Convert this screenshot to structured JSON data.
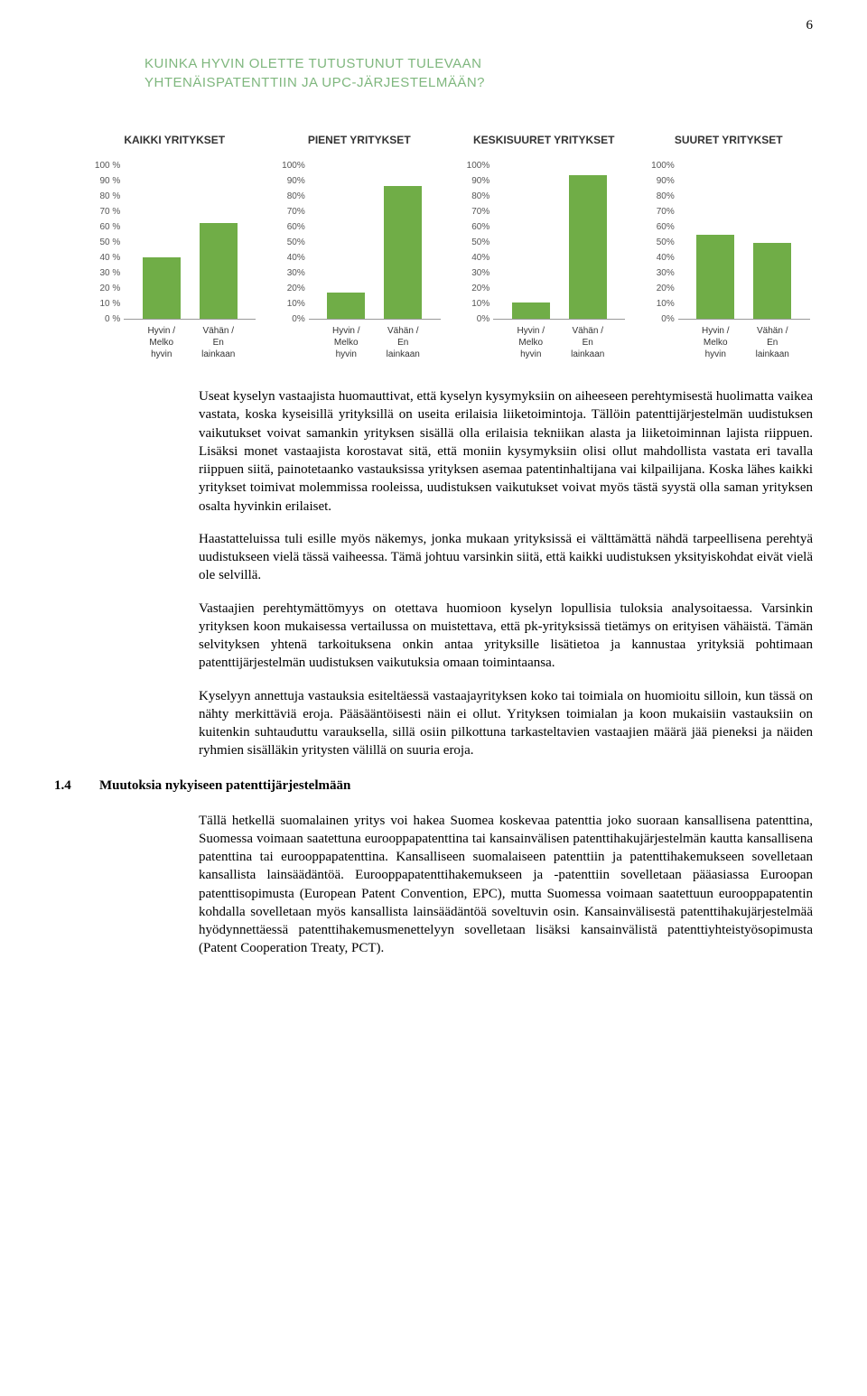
{
  "page_number": "6",
  "chart_heading": {
    "line1": "KUINKA HYVIN OLETTE TUTUSTUNUT TULEVAAN",
    "line2": "YHTENÄISPATENTTIIN JA UPC-JÄRJESTELMÄÄN?",
    "color": "#7fb77e"
  },
  "charts": {
    "ylim": [
      0,
      100
    ],
    "ytick_step": 10,
    "bar_color": "#70ad47",
    "background_color": "#ffffff",
    "panels": [
      {
        "title": "KAIKKI YRITYKSET",
        "y_suffix": " %",
        "categories": [
          "Hyvin / Melko hyvin",
          "Vähän / En lainkaan"
        ],
        "values": [
          38,
          59
        ]
      },
      {
        "title": "PIENET YRITYKSET",
        "y_suffix": "%",
        "categories": [
          "Hyvin / Melko hyvin",
          "Vähän / En lainkaan"
        ],
        "values": [
          16,
          82
        ]
      },
      {
        "title": "KESKISUURET YRITYKSET",
        "y_suffix": "%",
        "categories": [
          "Hyvin / Melko hyvin",
          "Vähän / En lainkaan"
        ],
        "values": [
          10,
          89
        ]
      },
      {
        "title": "SUURET YRITYKSET",
        "y_suffix": "%",
        "categories": [
          "Hyvin / Melko hyvin",
          "Vähän / En lainkaan"
        ],
        "values": [
          52,
          47
        ]
      }
    ]
  },
  "paragraphs": [
    "Useat kyselyn vastaajista huomauttivat, että kyselyn kysymyksiin on aiheeseen perehtymisestä huolimatta vaikea vastata, koska kyseisillä yrityksillä on useita erilaisia liiketoimintoja. Tällöin patenttijärjestelmän uudistuksen vaikutukset voivat samankin yrityksen sisällä olla erilaisia tekniikan alasta ja liiketoiminnan lajista riippuen. Lisäksi monet vastaajista korostavat sitä, että moniin kysymyksiin olisi ollut mahdollista vastata eri tavalla riippuen siitä, painotetaanko vastauksissa yrityksen asemaa patentinhaltijana vai kilpailijana. Koska lähes kaikki yritykset toimivat molemmissa rooleissa, uudistuksen vaikutukset voivat myös tästä syystä olla saman yrityksen osalta hyvinkin erilaiset.",
    "Haastatteluissa tuli esille myös näkemys, jonka mukaan yrityksissä ei välttämättä nähdä tarpeellisena perehtyä uudistukseen vielä tässä vaiheessa. Tämä johtuu varsinkin siitä, että kaikki uudistuksen yksityiskohdat eivät vielä ole selvillä.",
    "Vastaajien perehtymättömyys on otettava huomioon kyselyn lopullisia tuloksia analysoitaessa. Varsinkin yrityksen koon mukaisessa vertailussa on muistettava, että pk-yrityksissä tietämys on erityisen vähäistä. Tämän selvityksen yhtenä tarkoituksena onkin antaa yrityksille lisätietoa ja kannustaa yrityksiä pohtimaan patenttijärjestelmän uudistuksen vaikutuksia omaan toimintaansa.",
    "Kyselyyn annettuja vastauksia esiteltäessä vastaajayrityksen koko tai toimiala on huomioitu silloin, kun tässä on nähty merkittäviä eroja. Pääsääntöisesti näin ei ollut. Yrityksen toimialan ja koon mukaisiin vastauksiin on kuitenkin suhtauduttu varauksella, sillä osiin pilkottuna tarkasteltavien vastaajien määrä jää pieneksi ja näiden ryhmien sisälläkin yritysten välillä on suuria eroja."
  ],
  "section": {
    "number": "1.4",
    "title": "Muutoksia nykyiseen patenttijärjestelmään",
    "text": "Tällä hetkellä suomalainen yritys voi hakea Suomea koskevaa patenttia joko suoraan kansallisena patenttina, Suomessa voimaan saatettuna eurooppapatenttina tai kansainvälisen patenttihakujärjestelmän kautta kansallisena patenttina tai eurooppapatenttina. Kansalliseen suomalaiseen patenttiin ja patenttihakemukseen sovelletaan kansallista lainsäädäntöä. Eurooppapatenttihakemukseen ja -patenttiin sovelletaan pääasiassa Euroopan patenttisopimusta (European Patent Convention, EPC), mutta Suomessa voimaan saatettuun eurooppapatentin kohdalla sovelletaan myös kansallista lainsäädäntöä soveltuvin osin. Kansainvälisestä patenttihakujärjestelmää hyödynnettäessä patenttihakemusmenettelyyn sovelletaan lisäksi kansainvälistä patenttiyhteistyösopimusta (Patent Cooperation Treaty, PCT)."
  }
}
